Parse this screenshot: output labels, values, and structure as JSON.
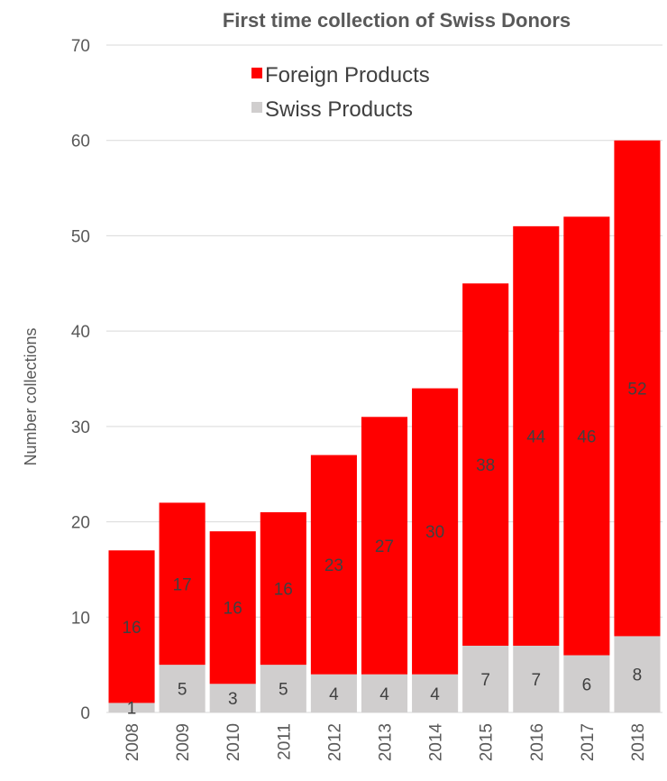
{
  "chart_data": {
    "type": "bar",
    "stacked": true,
    "title": "First time collection of Swiss Donors",
    "xlabel": "",
    "ylabel": "Number collections",
    "ylim": [
      0,
      70
    ],
    "yticks": [
      0,
      10,
      20,
      30,
      40,
      50,
      60,
      70
    ],
    "grid": true,
    "legend_position": "top-left",
    "categories": [
      "2008",
      "2009",
      "2010",
      "2011",
      "2012",
      "2013",
      "2014",
      "2015",
      "2016",
      "2017",
      "2018"
    ],
    "series": [
      {
        "name": "Swiss Products",
        "color": "#d0cece",
        "values": [
          1,
          5,
          3,
          5,
          4,
          4,
          4,
          7,
          7,
          6,
          8
        ]
      },
      {
        "name": "Foreign Products",
        "color": "#ff0000",
        "values": [
          16,
          17,
          16,
          16,
          23,
          27,
          30,
          38,
          44,
          46,
          52
        ]
      }
    ],
    "legend_order": [
      "Foreign Products",
      "Swiss Products"
    ]
  }
}
